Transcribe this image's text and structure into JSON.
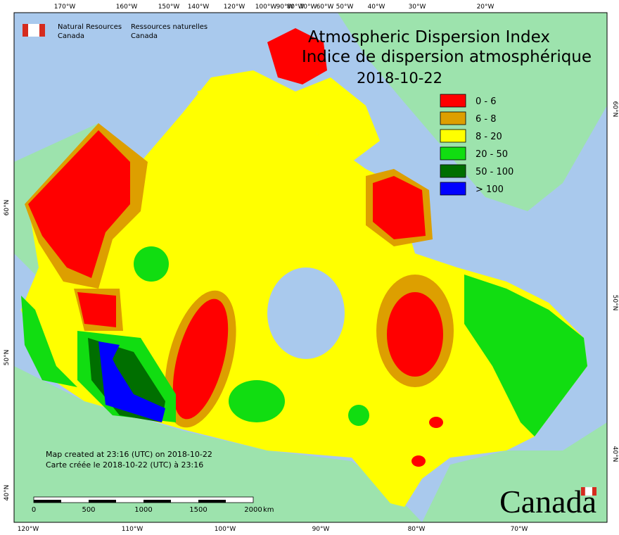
{
  "header": {
    "agency_en": "Natural Resources",
    "country_en": "Canada",
    "agency_fr": "Ressources naturelles",
    "country_fr": "Canada"
  },
  "title": {
    "line1": "Atmospheric Dispersion Index",
    "line2": "Indice de dispersion atmosphérique",
    "date": "2018-10-22"
  },
  "legend": [
    {
      "label": "0 - 6",
      "color": "#ff0000"
    },
    {
      "label": "6 - 8",
      "color": "#dd9f00"
    },
    {
      "label": "8 - 20",
      "color": "#ffff00"
    },
    {
      "label": "20 - 50",
      "color": "#11dd11"
    },
    {
      "label": "50 - 100",
      "color": "#006f00"
    },
    {
      "label": "> 100",
      "color": "#0000ff"
    }
  ],
  "graticule": {
    "top": [
      "170°W",
      "160°W",
      "150°W",
      "140°W",
      "120°W",
      "100°W",
      "90°W",
      "80°W",
      "70°W",
      "60°W",
      "50°W",
      "40°W",
      "30°W",
      "20°W"
    ],
    "bottom": [
      "120°W",
      "110°W",
      "100°W",
      "90°W",
      "80°W",
      "70°W"
    ],
    "left": [
      "60°N",
      "50°N",
      "40°N"
    ],
    "right": [
      "60°N",
      "50°N",
      "40°N"
    ]
  },
  "footer": {
    "created_en": "Map created at 23:16 (UTC) on 2018-10-22",
    "created_fr": "Carte créée le 2018-10-22 (UTC) à 23:16"
  },
  "scale": {
    "labels": [
      "0",
      "500",
      "1000",
      "1500",
      "2000"
    ],
    "unit": "km"
  },
  "wordmark": "Canada"
}
